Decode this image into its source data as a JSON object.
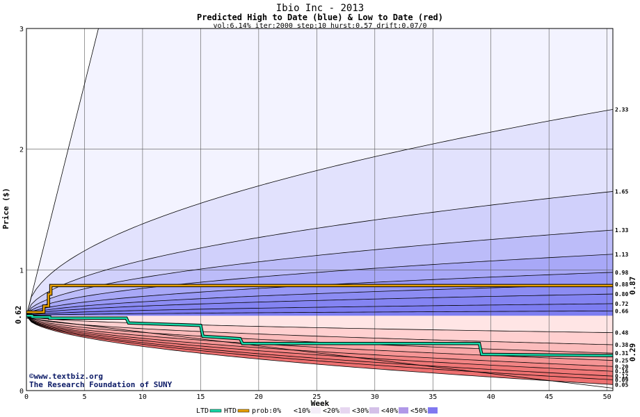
{
  "chart_data": {
    "type": "area",
    "title": "Ibio Inc - 2013",
    "subtitle": "Predicted High to Date (blue) &  Low to Date (red)",
    "params": "vol:6.14% iter:2000 step:10 hurst:0.57 drift:0.07/0",
    "xlabel": "Week",
    "ylabel": "Price ($)",
    "xlim": [
      0,
      50.5
    ],
    "ylim": [
      0,
      3
    ],
    "xticks": [
      0,
      5,
      10,
      15,
      20,
      25,
      30,
      35,
      40,
      45,
      50
    ],
    "yticks": [
      0,
      1,
      2,
      3
    ],
    "grid": true,
    "start_price": 0.62,
    "start_label": "0.62",
    "high_to_date_value": 0.87,
    "high_to_date_label": "0.87",
    "low_to_date_value": 0.29,
    "low_to_date_label": "0.29",
    "high_quantiles": [
      {
        "end": 0.66,
        "label": "0.66",
        "k": 0.1
      },
      {
        "end": 0.72,
        "label": "0.72",
        "k": 0.15
      },
      {
        "end": 0.8,
        "label": "0.80",
        "k": 0.2
      },
      {
        "end": 0.88,
        "label": "0.88",
        "k": 0.25
      },
      {
        "end": 0.98,
        "label": "0.98",
        "k": 0.3
      },
      {
        "end": 1.13,
        "label": "1.13",
        "k": 0.3
      },
      {
        "end": 1.33,
        "label": "1.33",
        "k": 0.3
      },
      {
        "end": 1.65,
        "label": "1.65",
        "k": 0.3
      },
      {
        "end": 2.33,
        "label": "2.33",
        "k": 0.3
      }
    ],
    "low_quantiles": [
      {
        "end": 0.48,
        "label": "0.48",
        "k": 0.25
      },
      {
        "end": 0.38,
        "label": "0.38",
        "k": 0.3
      },
      {
        "end": 0.31,
        "label": "0.31",
        "k": 0.3
      },
      {
        "end": 0.25,
        "label": "0.25",
        "k": 0.3
      },
      {
        "end": 0.2,
        "label": "0.20",
        "k": 0.3
      },
      {
        "end": 0.16,
        "label": "0.16",
        "k": 0.3
      },
      {
        "end": 0.12,
        "label": "0.12",
        "k": 0.3
      },
      {
        "end": 0.09,
        "label": "0.09",
        "k": 0.3
      },
      {
        "end": 0.05,
        "label": "0.05",
        "k": 0.3
      }
    ],
    "outer_high_line": {
      "x": [
        0,
        6.2
      ],
      "y": [
        0.62,
        3.0
      ]
    },
    "outer_low_line": {
      "x": [
        0,
        50.5
      ],
      "y": [
        0.6,
        0.02
      ]
    },
    "htd_series": {
      "name": "HTD",
      "x": [
        0,
        1.5,
        1.5,
        1.9,
        1.9,
        2.1,
        2.1,
        50.5
      ],
      "y": [
        0.65,
        0.65,
        0.7,
        0.7,
        0.8,
        0.8,
        0.87,
        0.87
      ]
    },
    "ltd_series": {
      "name": "LTD",
      "x": [
        0,
        0.5,
        0.5,
        2.0,
        2.0,
        8.6,
        8.8,
        15.0,
        15.2,
        18.4,
        18.6,
        39.0,
        39.2,
        50.5
      ],
      "y": [
        0.62,
        0.62,
        0.61,
        0.61,
        0.6,
        0.6,
        0.56,
        0.54,
        0.45,
        0.43,
        0.39,
        0.39,
        0.3,
        0.29
      ]
    },
    "legend": {
      "items": [
        "LTD",
        "HTD",
        "prob:0%",
        "<10%",
        "<20%",
        "<30%",
        "<40%",
        "<50%"
      ],
      "colors": [
        "#18d8a8",
        "#e8a000",
        "#ffffff",
        "#f4eef8",
        "#e6d6f0",
        "#d4c0e8",
        "#b098e8",
        "#8078f0"
      ]
    },
    "watermark_1": "©www.textbiz.org",
    "watermark_2": "The Research Foundation of SUNY",
    "colors": {
      "high_bands": [
        "#f3f3ff",
        "#e2e2fd",
        "#d0d0fb",
        "#bcbcf9",
        "#a8a8f7",
        "#9898f5",
        "#8c8cf3",
        "#8484f2",
        "#7d7df1"
      ],
      "low_bands": [
        "#fff6f6",
        "#ffe5e5",
        "#ffd0d0",
        "#fbbcbc",
        "#f8a8a8",
        "#f59595",
        "#f28484",
        "#ef7777",
        "#ed7070"
      ],
      "htd": "#e8a000",
      "ltd": "#18d8a8",
      "high_label": "#8a7000",
      "low_label": "#009070",
      "start_label": "#0a6a2a"
    }
  }
}
